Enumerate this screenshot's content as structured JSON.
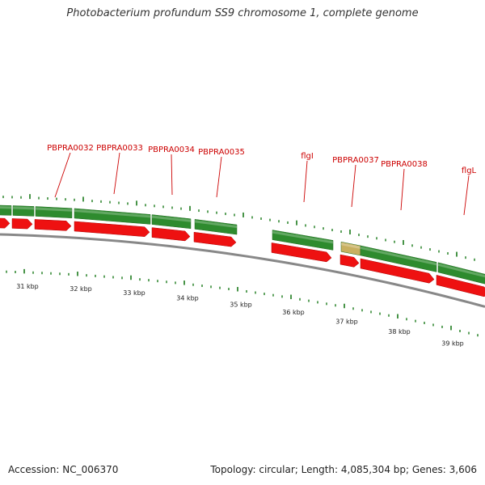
{
  "title": "Photobacterium profundum SS9 chromosome 1, complete genome",
  "footer": {
    "accession": "Accession: NC_006370",
    "stats": "Topology: circular; Length: 4,085,304 bp; Genes: 3,606"
  },
  "colors": {
    "gene_forward": "#2e8b2e",
    "gene_forward_highlight": "#c8b060",
    "cds_reverse": "#ee1111",
    "backbone": "#888888",
    "tick": "#1a7a1a",
    "label": "#cc0000"
  },
  "gene_labels": [
    "PBPRA0032",
    "PBPRA0033",
    "PBPRA0034",
    "PBPRA0035",
    "flgI",
    "PBPRA0037",
    "PBPRA0038",
    "flgL"
  ],
  "kbp_labels": [
    "31 kbp",
    "32 kbp",
    "33 kbp",
    "34 kbp",
    "35 kbp",
    "36 kbp",
    "37 kbp",
    "38 kbp",
    "39 kbp"
  ]
}
